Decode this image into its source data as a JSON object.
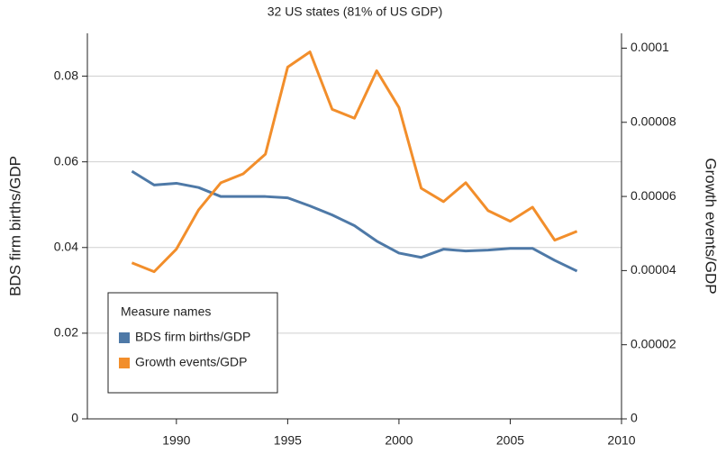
{
  "chart_data": {
    "type": "line",
    "title": "32 US states (81% of US GDP)",
    "y_label": "BDS firm births/GDP",
    "y2_label": "Growth events/GDP",
    "x": [
      1988,
      1989,
      1990,
      1991,
      1992,
      1993,
      1994,
      1995,
      1996,
      1997,
      1998,
      1999,
      2000,
      2001,
      2002,
      2003,
      2004,
      2005,
      2006,
      2007,
      2008
    ],
    "series": [
      {
        "name": "BDS firm births/GDP",
        "color": "#4e79a7",
        "axis": "y",
        "values": [
          0.0578,
          0.0546,
          0.055,
          0.054,
          0.0519,
          0.0519,
          0.0519,
          0.0516,
          0.0497,
          0.0476,
          0.0451,
          0.0415,
          0.0387,
          0.0377,
          0.0396,
          0.0392,
          0.0394,
          0.0398,
          0.0398,
          0.037,
          0.0345
        ]
      },
      {
        "name": "Growth events/GDP",
        "color": "#f28e2b",
        "axis": "y2",
        "values": [
          4.21e-05,
          3.97e-05,
          4.58e-05,
          5.64e-05,
          6.37e-05,
          6.61e-05,
          7.14e-05,
          9.49e-05,
          9.9e-05,
          8.35e-05,
          8.11e-05,
          9.39e-05,
          8.4e-05,
          6.22e-05,
          5.86e-05,
          6.37e-05,
          5.62e-05,
          5.33e-05,
          5.71e-05,
          4.82e-05,
          5.06e-05
        ]
      }
    ],
    "xlim": [
      1986,
      2010
    ],
    "xticks": [
      1990,
      1995,
      2000,
      2005,
      2010
    ],
    "ylim": [
      0,
      0.09
    ],
    "yticks": [
      0,
      0.02,
      0.04,
      0.06,
      0.08
    ],
    "y2lim": [
      0,
      0.000104
    ],
    "y2ticks": [
      0,
      2e-05,
      4e-05,
      6e-05,
      8e-05,
      0.0001
    ],
    "grid": true,
    "legend_title": "Measure names",
    "legend_position": "lower left"
  }
}
